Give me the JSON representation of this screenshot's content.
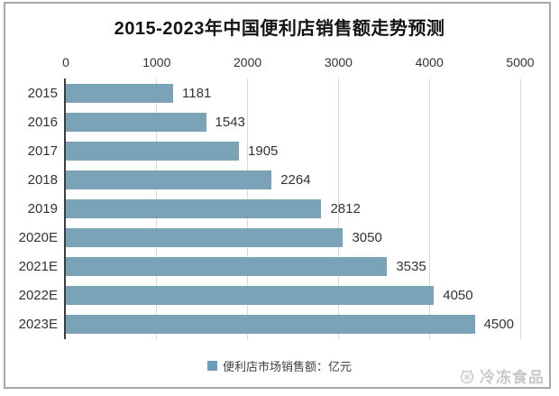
{
  "title": "2015-2023年中国便利店销售额走势预测",
  "chart_data": {
    "type": "bar",
    "orientation": "horizontal",
    "title": "2015-2023年中国便利店销售额走势预测",
    "categories": [
      "2015",
      "2016",
      "2017",
      "2018",
      "2019",
      "2020E",
      "2021E",
      "2022E",
      "2023E"
    ],
    "values": [
      1181,
      1543,
      1905,
      2264,
      2812,
      3050,
      3535,
      4050,
      4500
    ],
    "series_name": "便利店市场销售额：亿元",
    "unit": "亿元",
    "xlabel": "",
    "ylabel": "",
    "xlim": [
      0,
      5000
    ],
    "xticks": [
      0,
      1000,
      2000,
      3000,
      4000,
      5000
    ],
    "grid": true,
    "legend_position": "bottom",
    "bar_color": "#7AA3B8"
  },
  "legend": {
    "label": "便利店市场销售额：亿元",
    "marker_color": "#6E9DB9"
  },
  "watermark": {
    "text": "冷冻食品",
    "icon": "snowflake-logo"
  },
  "colors": {
    "background": "#FFFFFF",
    "bar": "#7AA3B8",
    "gridline": "#D9D9D9",
    "axis_line": "#3D3D3D",
    "text": "#333333",
    "title_text": "#141414",
    "border": "#A8A8A8",
    "watermark": "#C8C8C8"
  }
}
